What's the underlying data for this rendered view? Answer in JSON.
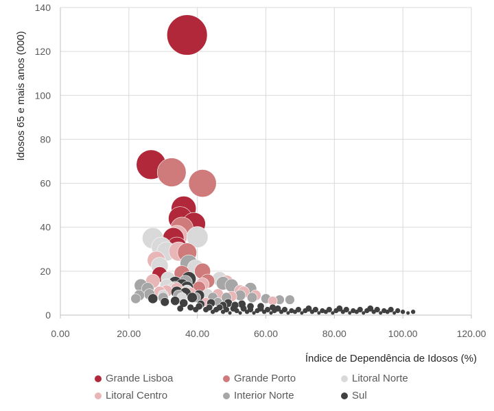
{
  "chart_data": {
    "type": "scatter",
    "subtype": "bubble",
    "title": "",
    "xlabel": "Índice de Dependência de Idosos (%)",
    "ylabel": "Idosos  65 e mais  anos (000)",
    "xlim": [
      0,
      120
    ],
    "ylim": [
      0,
      140
    ],
    "x_ticks": [
      0,
      20,
      40,
      60,
      80,
      100,
      120
    ],
    "x_tick_labels": [
      "0.00",
      "20.00",
      "40.00",
      "60.00",
      "80.00",
      "100.00",
      "120.00"
    ],
    "y_ticks": [
      0,
      20,
      40,
      60,
      80,
      100,
      120,
      140
    ],
    "y_tick_labels": [
      "0",
      "20",
      "40",
      "60",
      "80",
      "100",
      "120",
      "140"
    ],
    "grid": true,
    "legend_position": "bottom",
    "series": [
      {
        "name": "Grande Lisboa",
        "color": "#b0283a",
        "points": [
          [
            37,
            127.5
          ],
          [
            26.5,
            68.5
          ],
          [
            36,
            48.5
          ],
          [
            35,
            44
          ],
          [
            39,
            41.5
          ],
          [
            33,
            35
          ],
          [
            34,
            31
          ],
          [
            29,
            18.5
          ]
        ]
      },
      {
        "name": "Grande Porto",
        "color": "#d07b7b",
        "points": [
          [
            32.5,
            65
          ],
          [
            41.5,
            60
          ],
          [
            35.5,
            39.5
          ],
          [
            37,
            28.5
          ],
          [
            35.5,
            19
          ],
          [
            41.5,
            20
          ],
          [
            43,
            15.5
          ],
          [
            40.5,
            12.5
          ]
        ]
      },
      {
        "name": "Litoral Norte",
        "color": "#d9d9d9",
        "points": [
          [
            27,
            35
          ],
          [
            29.5,
            31
          ],
          [
            31,
            29
          ],
          [
            40,
            35.5
          ],
          [
            39.5,
            21.5
          ],
          [
            29,
            22.5
          ],
          [
            31.5,
            16.5
          ],
          [
            46.5,
            16.5
          ],
          [
            31,
            13.5
          ],
          [
            37,
            11
          ],
          [
            35.5,
            8
          ],
          [
            30,
            9
          ],
          [
            43,
            9.5
          ],
          [
            33,
            12
          ]
        ]
      },
      {
        "name": "Litoral Centro",
        "color": "#e8b6b6",
        "points": [
          [
            34,
            36
          ],
          [
            28,
            25
          ],
          [
            34.5,
            29
          ],
          [
            27,
            15.5
          ],
          [
            31,
            11
          ],
          [
            41.5,
            14
          ],
          [
            48.5,
            15
          ],
          [
            52.5,
            11
          ],
          [
            29,
            10.5
          ],
          [
            34,
            12
          ],
          [
            38,
            10
          ],
          [
            46,
            9.5
          ],
          [
            50,
            8.5
          ],
          [
            53.5,
            10.5
          ],
          [
            57,
            9
          ],
          [
            62,
            6.5
          ],
          [
            42.5,
            6
          ]
        ]
      },
      {
        "name": "Interior Norte",
        "color": "#a6a6a6",
        "points": [
          [
            37.5,
            23.5
          ],
          [
            23.5,
            13.5
          ],
          [
            25.5,
            12
          ],
          [
            26,
            9.5
          ],
          [
            33.5,
            12.5
          ],
          [
            36.5,
            15
          ],
          [
            47.5,
            14.5
          ],
          [
            50,
            13.5
          ],
          [
            55.5,
            12
          ],
          [
            34.5,
            9
          ],
          [
            39.5,
            8
          ],
          [
            44.5,
            8
          ],
          [
            48.5,
            8
          ],
          [
            52.5,
            9
          ],
          [
            56,
            8
          ],
          [
            60,
            7.5
          ],
          [
            64,
            7
          ],
          [
            67,
            7
          ],
          [
            46,
            6
          ],
          [
            22,
            7.5
          ],
          [
            30,
            8
          ],
          [
            23,
            9
          ]
        ]
      },
      {
        "name": "Sul",
        "color": "#404040",
        "points": [
          [
            37.5,
            16.5
          ],
          [
            33.5,
            14.5
          ],
          [
            35.5,
            13.5
          ],
          [
            37,
            12.5
          ],
          [
            34,
            10.5
          ],
          [
            36.5,
            10
          ],
          [
            38.5,
            8
          ],
          [
            40.5,
            9
          ],
          [
            27,
            7.5
          ],
          [
            30.5,
            6
          ],
          [
            33.5,
            6.5
          ],
          [
            36,
            5.5
          ],
          [
            41,
            5
          ],
          [
            44,
            5.5
          ],
          [
            47.5,
            4.5
          ],
          [
            49,
            5.5
          ],
          [
            51,
            4.5
          ],
          [
            53,
            5
          ],
          [
            55.5,
            4
          ],
          [
            58.5,
            4
          ],
          [
            62,
            3.5
          ],
          [
            35,
            3
          ],
          [
            38,
            3.5
          ],
          [
            39.5,
            2.5
          ],
          [
            40.5,
            4
          ],
          [
            42.5,
            2.5
          ],
          [
            43.5,
            3.5
          ],
          [
            44.5,
            1.5
          ],
          [
            45.5,
            2.5
          ],
          [
            46.5,
            3.5
          ],
          [
            47.5,
            1.5
          ],
          [
            48.5,
            2.5
          ],
          [
            49.5,
            1
          ],
          [
            50.5,
            3
          ],
          [
            51.5,
            2
          ],
          [
            52.5,
            1
          ],
          [
            53.5,
            3
          ],
          [
            54.5,
            1.5
          ],
          [
            55.5,
            2.5
          ],
          [
            56.5,
            1
          ],
          [
            57.5,
            2
          ],
          [
            58.5,
            3
          ],
          [
            59.5,
            1.5
          ],
          [
            60.5,
            2.5
          ],
          [
            61.5,
            1
          ],
          [
            62.5,
            2
          ],
          [
            63.5,
            3
          ],
          [
            64.5,
            1.5
          ],
          [
            65.5,
            2.5
          ],
          [
            66.5,
            1
          ],
          [
            67.5,
            2
          ],
          [
            68.5,
            1.5
          ],
          [
            69.5,
            2.5
          ],
          [
            70.5,
            1
          ],
          [
            71.5,
            2
          ],
          [
            72.5,
            3
          ],
          [
            73.5,
            1.5
          ],
          [
            74.5,
            2.5
          ],
          [
            75.5,
            1
          ],
          [
            76.5,
            2
          ],
          [
            77.5,
            1.5
          ],
          [
            78.5,
            2.5
          ],
          [
            79.5,
            1
          ],
          [
            80.5,
            2
          ],
          [
            81.5,
            3
          ],
          [
            82.5,
            1.5
          ],
          [
            83.5,
            2.5
          ],
          [
            84.5,
            1
          ],
          [
            85.5,
            2
          ],
          [
            86.5,
            1.5
          ],
          [
            87.5,
            2.5
          ],
          [
            88.5,
            1
          ],
          [
            89.5,
            2
          ],
          [
            90.5,
            3
          ],
          [
            91.5,
            1.5
          ],
          [
            92.5,
            2.5
          ],
          [
            93.5,
            1
          ],
          [
            94.5,
            2
          ],
          [
            95.5,
            1.5
          ],
          [
            96.5,
            2.5
          ],
          [
            97.5,
            1
          ],
          [
            98.5,
            2
          ],
          [
            100,
            1.5
          ],
          [
            101.5,
            1
          ],
          [
            103,
            1.5
          ]
        ]
      }
    ]
  }
}
